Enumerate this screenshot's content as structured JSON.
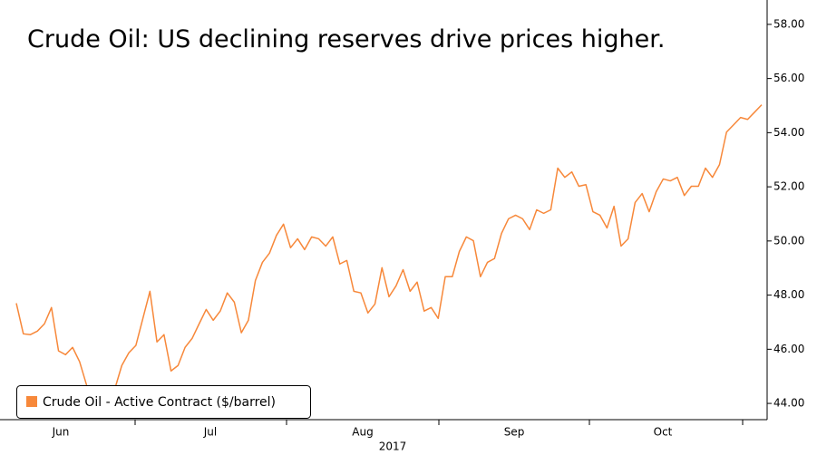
{
  "chart_data": {
    "type": "line",
    "title": "Crude Oil: US declining reserves drive prices higher.",
    "x_labels": [
      "Jun",
      "Jul",
      "Aug",
      "Sep",
      "Oct"
    ],
    "x_sublabel": "2017",
    "series": [
      {
        "name": "Crude Oil - Active Contract ($/barrel)",
        "color": "#f7883a",
        "values": [
          47.7,
          46.57,
          46.54,
          46.67,
          46.94,
          47.54,
          45.94,
          45.8,
          46.07,
          45.54,
          44.67,
          43.67,
          43.87,
          44.2,
          44.53,
          45.4,
          45.87,
          46.14,
          47.14,
          48.14,
          46.27,
          46.54,
          45.2,
          45.4,
          46.07,
          46.4,
          46.94,
          47.47,
          47.07,
          47.41,
          48.08,
          47.74,
          46.61,
          47.07,
          48.54,
          49.21,
          49.55,
          50.21,
          50.62,
          49.75,
          50.08,
          49.68,
          50.15,
          50.08,
          49.81,
          50.15,
          49.15,
          49.28,
          48.14,
          48.08,
          47.34,
          47.67,
          49.01,
          47.94,
          48.34,
          48.94,
          48.14,
          48.48,
          47.41,
          47.54,
          47.14,
          48.68,
          48.68,
          49.61,
          50.15,
          50.01,
          48.68,
          49.21,
          49.35,
          50.28,
          50.82,
          50.95,
          50.82,
          50.42,
          51.15,
          51.02,
          51.15,
          52.69,
          52.35,
          52.55,
          52.02,
          52.08,
          51.08,
          50.95,
          50.48,
          51.28,
          49.81,
          50.08,
          51.42,
          51.75,
          51.08,
          51.82,
          52.29,
          52.22,
          52.35,
          51.68,
          52.02,
          52.02,
          52.69,
          52.35,
          52.82,
          54.02,
          54.29,
          54.56,
          54.49,
          54.76,
          55.03
        ]
      }
    ],
    "ylim": [
      43.4,
      58.9
    ],
    "yticks": [
      {
        "value": 44,
        "label": "44.00"
      },
      {
        "value": 46,
        "label": "46.00"
      },
      {
        "value": 48,
        "label": "48.00"
      },
      {
        "value": 50,
        "label": "50.00"
      },
      {
        "value": 52,
        "label": "52.00"
      },
      {
        "value": 54,
        "label": "54.00"
      },
      {
        "value": 56,
        "label": "56.00"
      },
      {
        "value": 58,
        "label": "58.00"
      }
    ],
    "legend": "lower left"
  }
}
